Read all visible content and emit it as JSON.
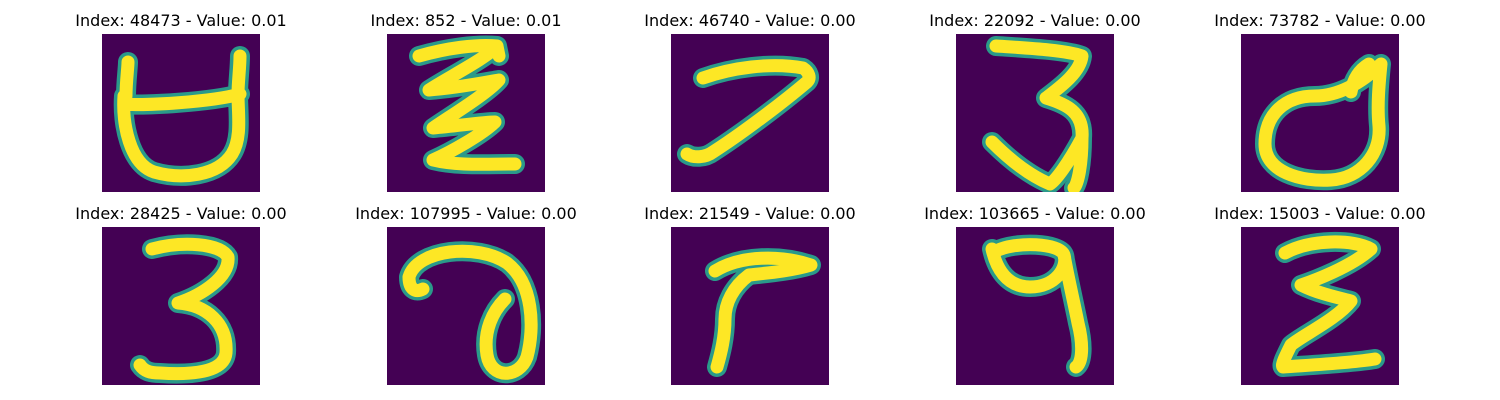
{
  "colors": {
    "background": "#440154",
    "edge": "#2a9a8a",
    "stroke": "#fde725",
    "title": "#000000"
  },
  "panels": [
    {
      "title": "Index: 48473 - Value: 0.01",
      "glyph": "open-bowl-horns-glyph"
    },
    {
      "title": "Index: 852 - Value: 0.01",
      "glyph": "zigzag-glyph"
    },
    {
      "title": "Index: 46740 - Value: 0.00",
      "glyph": "seven-glyph"
    },
    {
      "title": "Index: 22092 - Value: 0.00",
      "glyph": "three-glyph"
    },
    {
      "title": "Index: 73782 - Value: 0.00",
      "glyph": "d-loop-glyph"
    },
    {
      "title": "Index: 28425 - Value: 0.00",
      "glyph": "three-glyph"
    },
    {
      "title": "Index: 107995 - Value: 0.00",
      "glyph": "curl-glyph"
    },
    {
      "title": "Index: 21549 - Value: 0.00",
      "glyph": "hook-glyph"
    },
    {
      "title": "Index: 103665 - Value: 0.00",
      "glyph": "nine-glyph"
    },
    {
      "title": "Index: 15003 - Value: 0.00",
      "glyph": "epsilon-glyph"
    }
  ]
}
